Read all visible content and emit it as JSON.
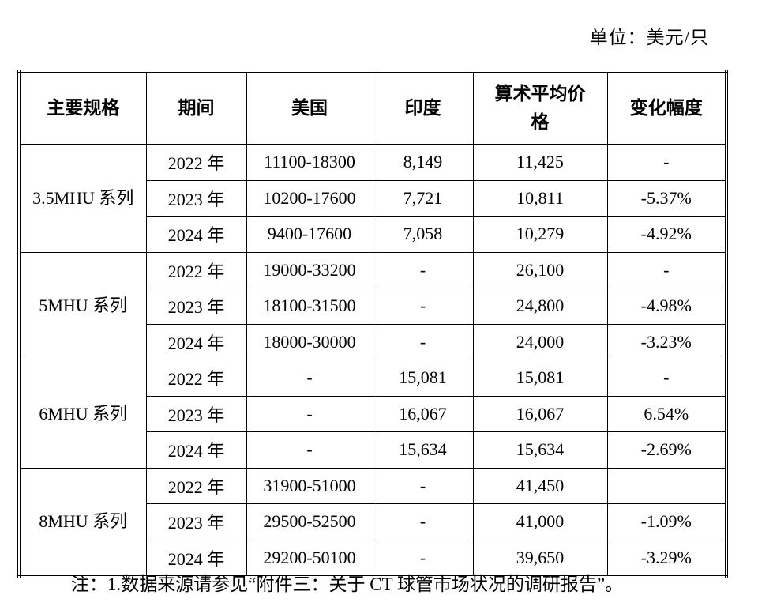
{
  "unit_label": "单位：美元/只",
  "table": {
    "headers": [
      "主要规格",
      "期间",
      "美国",
      "印度",
      "算术平均价格",
      "变化幅度"
    ],
    "groups": [
      {
        "spec": "3.5MHU 系列",
        "rows": [
          {
            "period": "2022 年",
            "usa": "11100-18300",
            "india": "8,149",
            "avg": "11,425",
            "change": "-"
          },
          {
            "period": "2023 年",
            "usa": "10200-17600",
            "india": "7,721",
            "avg": "10,811",
            "change": "-5.37%"
          },
          {
            "period": "2024 年",
            "usa": "9400-17600",
            "india": "7,058",
            "avg": "10,279",
            "change": "-4.92%"
          }
        ]
      },
      {
        "spec": "5MHU 系列",
        "rows": [
          {
            "period": "2022 年",
            "usa": "19000-33200",
            "india": "-",
            "avg": "26,100",
            "change": "-"
          },
          {
            "period": "2023 年",
            "usa": "18100-31500",
            "india": "-",
            "avg": "24,800",
            "change": "-4.98%"
          },
          {
            "period": "2024 年",
            "usa": "18000-30000",
            "india": "-",
            "avg": "24,000",
            "change": "-3.23%"
          }
        ]
      },
      {
        "spec": "6MHU 系列",
        "rows": [
          {
            "period": "2022 年",
            "usa": "-",
            "india": "15,081",
            "avg": "15,081",
            "change": "-"
          },
          {
            "period": "2023 年",
            "usa": "-",
            "india": "16,067",
            "avg": "16,067",
            "change": "6.54%"
          },
          {
            "period": "2024 年",
            "usa": "-",
            "india": "15,634",
            "avg": "15,634",
            "change": "-2.69%"
          }
        ]
      },
      {
        "spec": "8MHU 系列",
        "rows": [
          {
            "period": "2022 年",
            "usa": "31900-51000",
            "india": "-",
            "avg": "41,450",
            "change": ""
          },
          {
            "period": "2023 年",
            "usa": "29500-52500",
            "india": "-",
            "avg": "41,000",
            "change": "-1.09%"
          },
          {
            "period": "2024 年",
            "usa": "29200-50100",
            "india": "-",
            "avg": "39,650",
            "change": "-3.29%"
          }
        ]
      }
    ]
  },
  "note": "注：1.数据来源请参见“附件三：关于 CT 球管市场状况的调研报告”。"
}
